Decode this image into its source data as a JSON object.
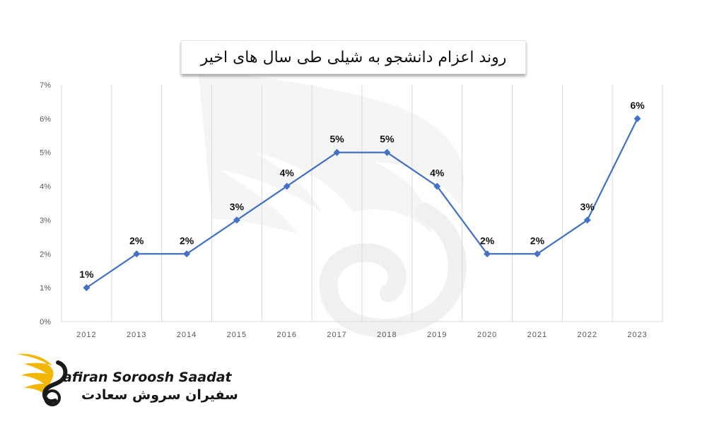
{
  "title": "روند اعزام دانشجو به شیلی طی سال های اخیر",
  "logo": {
    "english": "afiran Soroosh Saadat",
    "persian": "سفیران سروش سعادت",
    "colors": {
      "wing": "#f2b705",
      "mark": "#1a1a1a"
    }
  },
  "chart_data": {
    "type": "line",
    "title": "روند اعزام دانشجو به شیلی طی سال های اخیر",
    "categories": [
      "2012",
      "2013",
      "2014",
      "2015",
      "2016",
      "2017",
      "2018",
      "2019",
      "2020",
      "2021",
      "2022",
      "2023"
    ],
    "series": [
      {
        "values": [
          1,
          2,
          2,
          3,
          4,
          5,
          5,
          4,
          2,
          2,
          3,
          6
        ],
        "data_labels": [
          "1%",
          "2%",
          "2%",
          "3%",
          "4%",
          "5%",
          "5%",
          "4%",
          "2%",
          "2%",
          "3%",
          "6%"
        ],
        "color": "#4472c4",
        "marker": "diamond"
      }
    ],
    "y_ticks": [
      "0%",
      "1%",
      "2%",
      "3%",
      "4%",
      "5%",
      "6%",
      "7%"
    ],
    "ylim": [
      0,
      7
    ],
    "grid": "vertical",
    "xlabel": "",
    "ylabel": ""
  }
}
